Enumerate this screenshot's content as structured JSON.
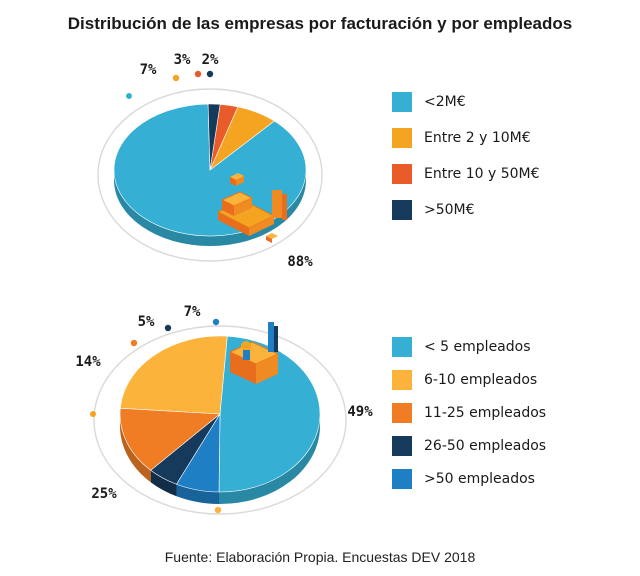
{
  "title": "Distribución de las empresas por facturación y por empleados",
  "source": "Fuente: Elaboración Propia. Encuestas DEV 2018",
  "chart_data": [
    {
      "type": "pie",
      "categories": [
        "<2M€",
        "Entre 2 y 10M€",
        "Entre 10 y 50M€",
        ">50M€"
      ],
      "values": [
        88,
        7,
        3,
        2
      ],
      "labels": [
        "88%",
        "7%",
        "3%",
        "2%"
      ],
      "colors": [
        "#35afd3",
        "#f5a421",
        "#ea5b2a",
        "#163a5c"
      ],
      "legend": "right",
      "decoration_icon": "factory-icon"
    },
    {
      "type": "pie",
      "categories": [
        "< 5 empleados",
        "6-10 empleados",
        "11-25 empleados",
        "26-50 empleados",
        ">50 empleados"
      ],
      "values": [
        49,
        25,
        14,
        5,
        7
      ],
      "labels": [
        "49%",
        "25%",
        "14%",
        "5%",
        "7%"
      ],
      "colors": [
        "#35afd3",
        "#fbb33b",
        "#f07d24",
        "#163a5c",
        "#1f7fc4"
      ],
      "legend": "right",
      "decoration_icon": "worker-icon"
    }
  ]
}
